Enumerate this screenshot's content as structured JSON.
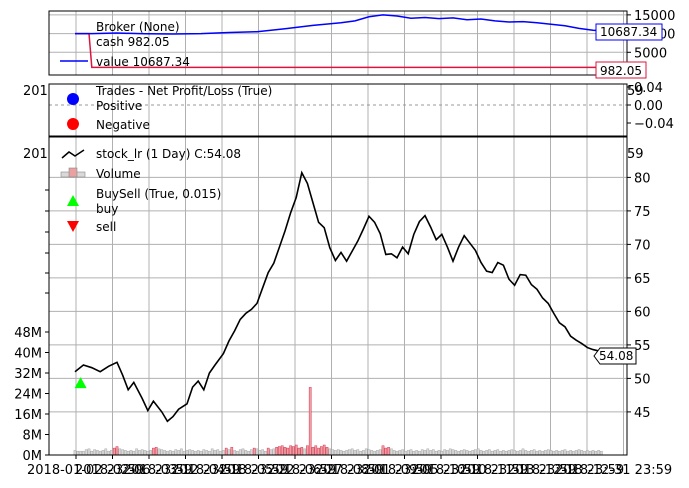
{
  "chart_data": [
    {
      "type": "line",
      "panel": "broker",
      "legend": {
        "title": "Broker (None)",
        "entries": [
          {
            "label": "cash 982.05",
            "color": "#dc143c"
          },
          {
            "label": "value 10687.34",
            "color": "#0000ff"
          }
        ]
      },
      "y_ticks": [
        "15000",
        "10000",
        "5000"
      ],
      "ylim": [
        0,
        15500
      ],
      "series": [
        {
          "name": "cash",
          "color": "#dc143c",
          "values": [
            [
              0,
              10000
            ],
            [
              5,
              10000
            ],
            [
              6,
              982.05
            ],
            [
              190,
              982.05
            ]
          ],
          "last_label": "982.05"
        },
        {
          "name": "value",
          "color": "#0000ff",
          "values": [
            [
              0,
              10000
            ],
            [
              6,
              10000
            ],
            [
              15,
              10150
            ],
            [
              25,
              9950
            ],
            [
              35,
              9900
            ],
            [
              45,
              10000
            ],
            [
              55,
              10300
            ],
            [
              65,
              10500
            ],
            [
              75,
              11300
            ],
            [
              85,
              12200
            ],
            [
              95,
              12900
            ],
            [
              100,
              13400
            ],
            [
              105,
              14500
            ],
            [
              110,
              15000
            ],
            [
              115,
              14700
            ],
            [
              120,
              14100
            ],
            [
              125,
              14300
            ],
            [
              130,
              14000
            ],
            [
              135,
              14200
            ],
            [
              140,
              13700
            ],
            [
              145,
              13900
            ],
            [
              150,
              13400
            ],
            [
              155,
              13100
            ],
            [
              160,
              13200
            ],
            [
              165,
              12900
            ],
            [
              170,
              12500
            ],
            [
              175,
              12100
            ],
            [
              180,
              11400
            ],
            [
              185,
              10900
            ],
            [
              190,
              10687.34
            ]
          ],
          "last_label": "10687.34"
        }
      ]
    },
    {
      "type": "scatter",
      "panel": "trades",
      "legend": {
        "title": "Trades - Net Profit/Loss (True)",
        "entries": [
          {
            "label": "Positive",
            "color": "#0000ff"
          },
          {
            "label": "Negative",
            "color": "#ff0000"
          }
        ]
      },
      "y_ticks": [
        "0.04",
        "0.00",
        "−0.04"
      ],
      "ylim": [
        -0.06,
        0.06
      ],
      "tick_fragment_left": "201",
      "tick_fragment_right": "59"
    },
    {
      "type": "line",
      "panel": "price",
      "legend": {
        "entries": [
          {
            "label": "stock_lr (1 Day) C:54.08",
            "color": "#000000"
          },
          {
            "label": "Volume",
            "color": "#e8a0a0"
          },
          {
            "label": "BuySell (True, 0.015)",
            "color": "#000000"
          },
          {
            "label": "buy",
            "color": "#00ff00"
          },
          {
            "label": "sell",
            "color": "#ff0000"
          }
        ]
      },
      "right_ticks": [
        "80",
        "75",
        "70",
        "65",
        "60",
        "55",
        "50",
        "45"
      ],
      "right_ylim": [
        41,
        82
      ],
      "left_ticks": [
        "48M",
        "40M",
        "32M",
        "24M",
        "16M",
        "8M",
        "0M"
      ],
      "left_ylim": [
        0,
        160
      ],
      "last_label": "54.08",
      "tick_fragment_left": "201",
      "tick_fragment_right": "59",
      "close": [
        [
          0,
          51
        ],
        [
          3,
          52
        ],
        [
          6,
          51.6
        ],
        [
          9,
          51
        ],
        [
          12,
          51.8
        ],
        [
          15,
          52.4
        ],
        [
          17,
          50.5
        ],
        [
          19,
          48.3
        ],
        [
          21,
          49.4
        ],
        [
          24,
          47
        ],
        [
          26,
          45.2
        ],
        [
          28,
          46.6
        ],
        [
          31,
          45
        ],
        [
          33,
          43.6
        ],
        [
          35,
          44.3
        ],
        [
          37,
          45.4
        ],
        [
          40,
          46.2
        ],
        [
          42,
          48.7
        ],
        [
          44,
          49.6
        ],
        [
          46,
          48.3
        ],
        [
          48,
          50.8
        ],
        [
          50,
          52
        ],
        [
          53,
          53.7
        ],
        [
          55,
          55.6
        ],
        [
          57,
          57.1
        ],
        [
          59,
          58.8
        ],
        [
          61,
          59.7
        ],
        [
          63,
          60.3
        ],
        [
          65,
          61.2
        ],
        [
          67,
          63.5
        ],
        [
          69,
          65.8
        ],
        [
          71,
          67.2
        ],
        [
          73,
          69.6
        ],
        [
          75,
          72
        ],
        [
          77,
          74.7
        ],
        [
          79,
          77
        ],
        [
          81,
          80.7
        ],
        [
          83,
          79.1
        ],
        [
          85,
          76.2
        ],
        [
          87,
          73.3
        ],
        [
          89,
          72.5
        ],
        [
          91,
          69.5
        ],
        [
          93,
          67.6
        ],
        [
          95,
          68.8
        ],
        [
          97,
          67.5
        ],
        [
          99,
          69
        ],
        [
          101,
          70.5
        ],
        [
          103,
          72.3
        ],
        [
          105,
          74.2
        ],
        [
          107,
          73.3
        ],
        [
          109,
          71.6
        ],
        [
          111,
          68.5
        ],
        [
          113,
          68.6
        ],
        [
          115,
          68
        ],
        [
          117,
          69.6
        ],
        [
          119,
          68.6
        ],
        [
          121,
          71.5
        ],
        [
          123,
          73.4
        ],
        [
          125,
          74.3
        ],
        [
          127,
          72.6
        ],
        [
          129,
          70.7
        ],
        [
          131,
          71.5
        ],
        [
          133,
          69.6
        ],
        [
          135,
          67.5
        ],
        [
          137,
          69.6
        ],
        [
          139,
          71.3
        ],
        [
          141,
          70.2
        ],
        [
          143,
          69.1
        ],
        [
          145,
          67.3
        ],
        [
          147,
          66
        ],
        [
          149,
          65.8
        ],
        [
          151,
          67.3
        ],
        [
          153,
          66.9
        ],
        [
          155,
          64.8
        ],
        [
          157,
          63.9
        ],
        [
          159,
          65.5
        ],
        [
          161,
          65.4
        ],
        [
          163,
          64
        ],
        [
          165,
          63.3
        ],
        [
          167,
          62
        ],
        [
          169,
          61.2
        ],
        [
          171,
          59.7
        ],
        [
          173,
          58.3
        ],
        [
          175,
          57.7
        ],
        [
          177,
          56.3
        ],
        [
          179,
          55.7
        ],
        [
          181,
          55.2
        ],
        [
          183,
          54.6
        ],
        [
          185,
          54.3
        ],
        [
          187,
          54.1
        ],
        [
          190,
          54.08
        ]
      ],
      "volume": [
        [
          0,
          6
        ],
        [
          1,
          5
        ],
        [
          2,
          5
        ],
        [
          3,
          5
        ],
        [
          4,
          7
        ],
        [
          5,
          8
        ],
        [
          6,
          5
        ],
        [
          7,
          7
        ],
        [
          8,
          6
        ],
        [
          9,
          5
        ],
        [
          10,
          6
        ],
        [
          11,
          8
        ],
        [
          12,
          5
        ],
        [
          13,
          6
        ],
        [
          14,
          9
        ],
        [
          15,
          11
        ],
        [
          16,
          8
        ],
        [
          17,
          7
        ],
        [
          18,
          6
        ],
        [
          19,
          5
        ],
        [
          20,
          6
        ],
        [
          21,
          5
        ],
        [
          22,
          8
        ],
        [
          23,
          6
        ],
        [
          24,
          7
        ],
        [
          25,
          6
        ],
        [
          26,
          5
        ],
        [
          27,
          6
        ],
        [
          28,
          9
        ],
        [
          29,
          10
        ],
        [
          30,
          8
        ],
        [
          31,
          7
        ],
        [
          32,
          6
        ],
        [
          33,
          5
        ],
        [
          34,
          6
        ],
        [
          35,
          5
        ],
        [
          36,
          7
        ],
        [
          37,
          6
        ],
        [
          38,
          8
        ],
        [
          39,
          5
        ],
        [
          40,
          6
        ],
        [
          41,
          7
        ],
        [
          42,
          6
        ],
        [
          43,
          5
        ],
        [
          44,
          6
        ],
        [
          45,
          5
        ],
        [
          46,
          7
        ],
        [
          47,
          6
        ],
        [
          48,
          5
        ],
        [
          49,
          8
        ],
        [
          50,
          6
        ],
        [
          51,
          7
        ],
        [
          52,
          5
        ],
        [
          53,
          6
        ],
        [
          54,
          9
        ],
        [
          55,
          7
        ],
        [
          56,
          10
        ],
        [
          57,
          6
        ],
        [
          58,
          5
        ],
        [
          59,
          7
        ],
        [
          60,
          8
        ],
        [
          61,
          6
        ],
        [
          62,
          5
        ],
        [
          63,
          7
        ],
        [
          64,
          9
        ],
        [
          65,
          8
        ],
        [
          66,
          6
        ],
        [
          67,
          7
        ],
        [
          68,
          5
        ],
        [
          69,
          9
        ],
        [
          70,
          7
        ],
        [
          71,
          8
        ],
        [
          72,
          10
        ],
        [
          73,
          11
        ],
        [
          74,
          12
        ],
        [
          75,
          10
        ],
        [
          76,
          9
        ],
        [
          77,
          12
        ],
        [
          78,
          11
        ],
        [
          79,
          13
        ],
        [
          80,
          9
        ],
        [
          81,
          10
        ],
        [
          82,
          8
        ],
        [
          83,
          12
        ],
        [
          84,
          88
        ],
        [
          85,
          10
        ],
        [
          86,
          12
        ],
        [
          87,
          9
        ],
        [
          88,
          11
        ],
        [
          89,
          13
        ],
        [
          90,
          10
        ],
        [
          91,
          8
        ],
        [
          92,
          7
        ],
        [
          93,
          6
        ],
        [
          94,
          7
        ],
        [
          95,
          6
        ],
        [
          96,
          5
        ],
        [
          97,
          6
        ],
        [
          98,
          7
        ],
        [
          99,
          8
        ],
        [
          100,
          6
        ],
        [
          101,
          7
        ],
        [
          102,
          5
        ],
        [
          103,
          6
        ],
        [
          104,
          8
        ],
        [
          105,
          7
        ],
        [
          106,
          6
        ],
        [
          107,
          5
        ],
        [
          108,
          6
        ],
        [
          109,
          7
        ],
        [
          110,
          12
        ],
        [
          111,
          9
        ],
        [
          112,
          10
        ],
        [
          113,
          8
        ],
        [
          114,
          6
        ],
        [
          115,
          5
        ],
        [
          116,
          6
        ],
        [
          117,
          7
        ],
        [
          118,
          5
        ],
        [
          119,
          6
        ],
        [
          120,
          7
        ],
        [
          121,
          5
        ],
        [
          122,
          6
        ],
        [
          123,
          5
        ],
        [
          124,
          7
        ],
        [
          125,
          6
        ],
        [
          126,
          8
        ],
        [
          127,
          6
        ],
        [
          128,
          7
        ],
        [
          129,
          5
        ],
        [
          130,
          6
        ],
        [
          131,
          5
        ],
        [
          132,
          7
        ],
        [
          133,
          6
        ],
        [
          134,
          8
        ],
        [
          135,
          7
        ],
        [
          136,
          6
        ],
        [
          137,
          5
        ],
        [
          138,
          6
        ],
        [
          139,
          7
        ],
        [
          140,
          6
        ],
        [
          141,
          5
        ],
        [
          142,
          6
        ],
        [
          143,
          7
        ],
        [
          144,
          8
        ],
        [
          145,
          6
        ],
        [
          146,
          5
        ],
        [
          147,
          6
        ],
        [
          148,
          7
        ],
        [
          149,
          5
        ],
        [
          150,
          6
        ],
        [
          151,
          7
        ],
        [
          152,
          5
        ],
        [
          153,
          6
        ],
        [
          154,
          5
        ],
        [
          155,
          6
        ],
        [
          156,
          7
        ],
        [
          157,
          6
        ],
        [
          158,
          5
        ],
        [
          159,
          6
        ],
        [
          160,
          8
        ],
        [
          161,
          6
        ],
        [
          162,
          5
        ],
        [
          163,
          6
        ],
        [
          164,
          7
        ],
        [
          165,
          5
        ],
        [
          166,
          6
        ],
        [
          167,
          5
        ],
        [
          168,
          6
        ],
        [
          169,
          7
        ],
        [
          170,
          6
        ],
        [
          171,
          5
        ],
        [
          172,
          6
        ],
        [
          173,
          5
        ],
        [
          174,
          6
        ],
        [
          175,
          7
        ],
        [
          176,
          5
        ],
        [
          177,
          6
        ],
        [
          178,
          5
        ],
        [
          179,
          6
        ],
        [
          180,
          7
        ],
        [
          181,
          6
        ],
        [
          182,
          5
        ],
        [
          183,
          6
        ],
        [
          184,
          5
        ],
        [
          185,
          6
        ],
        [
          186,
          5
        ],
        [
          187,
          6
        ],
        [
          188,
          5
        ]
      ],
      "buy_markers": [
        [
          2,
          49.3
        ]
      ],
      "x_ticks": [
        "2018-01-02 23:59",
        "2018-02-06 23:59",
        "2018-03-12 23:59",
        "2018-04-18 23:59",
        "2018-05-22 23:59",
        "2018-06-27 23:59",
        "2018-08-01 23:59",
        "2018-09-05 23:59",
        "2018-10-10 23:59",
        "2018-11-13 23:59",
        "2018-12-18 23:59",
        "2018-12-31 23:59"
      ]
    }
  ]
}
